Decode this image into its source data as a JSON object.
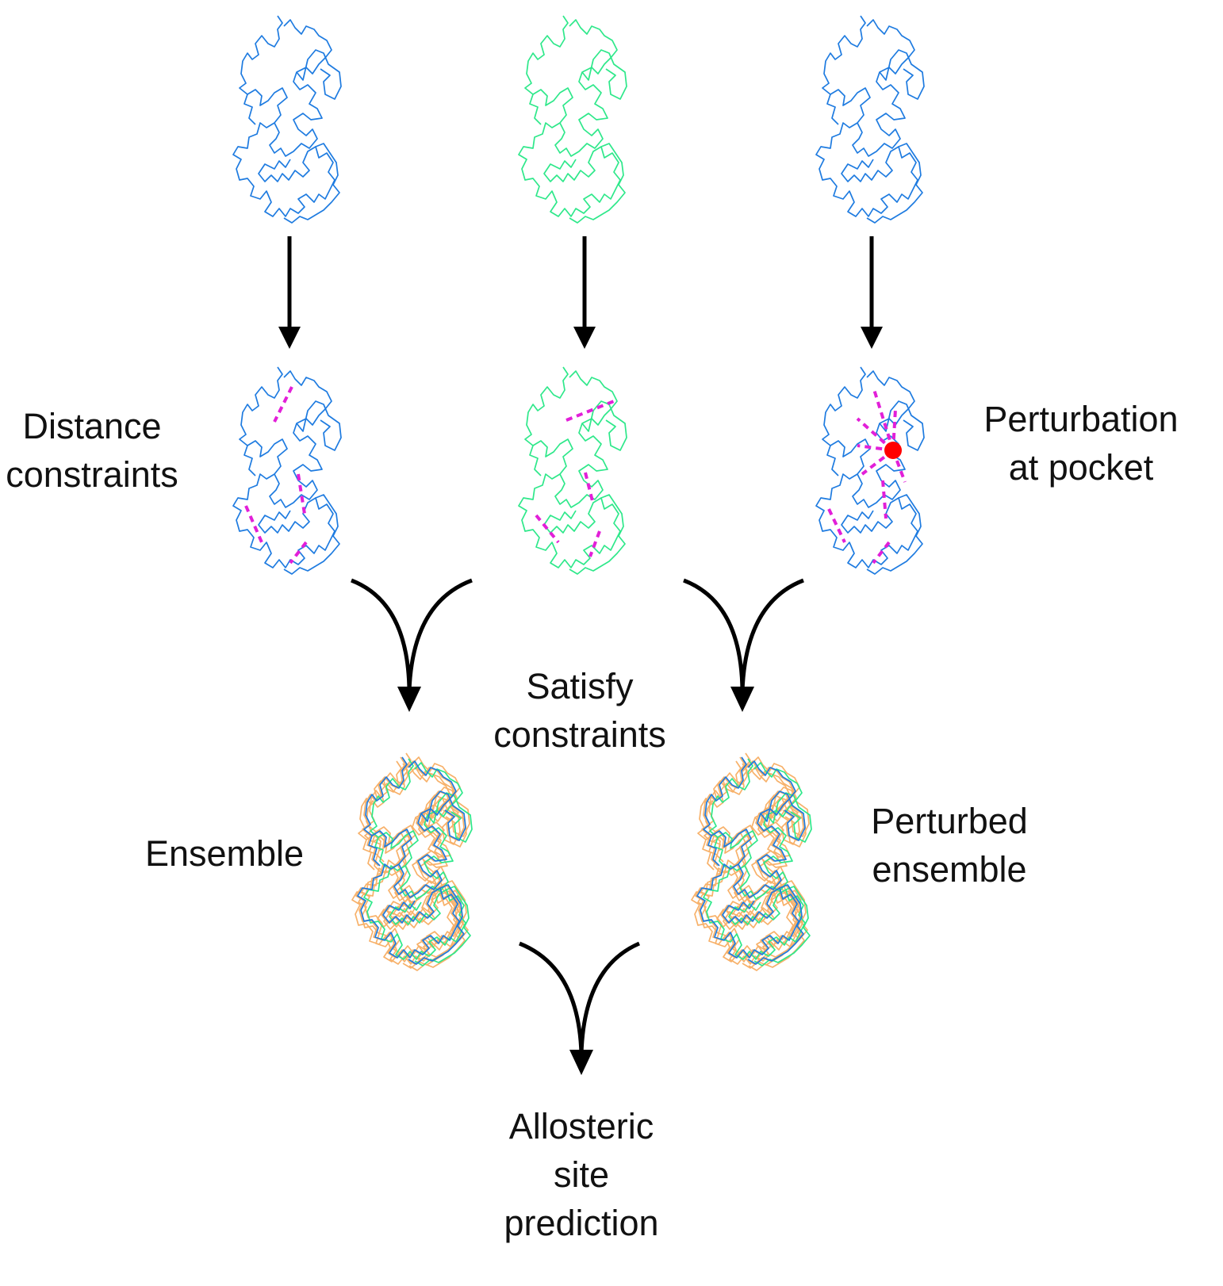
{
  "labels": {
    "distance": [
      "Distance",
      "constraints"
    ],
    "perturbation": [
      "Perturbation",
      "at pocket"
    ],
    "satisfy": [
      "Satisfy",
      "constraints"
    ],
    "ensemble": "Ensemble",
    "perturbed": [
      "Perturbed",
      "ensemble"
    ],
    "allosteric": [
      "Allosteric",
      "site",
      "prediction"
    ]
  },
  "colors": {
    "blue": "#1e7be0",
    "green": "#2ee88a",
    "orange": "#f7b16a",
    "constraint": "#e21fd8",
    "pocket": "#ff0000",
    "arrow": "#000000"
  },
  "structures": [
    {
      "name": "protein-top-left",
      "color": "blue"
    },
    {
      "name": "protein-top-middle",
      "color": "green"
    },
    {
      "name": "protein-top-right",
      "color": "blue"
    },
    {
      "name": "protein-constrained-left",
      "color": "blue"
    },
    {
      "name": "protein-constrained-middle",
      "color": "green"
    },
    {
      "name": "protein-perturbed-right",
      "color": "blue"
    },
    {
      "name": "ensemble-left",
      "color": "orange"
    },
    {
      "name": "ensemble-right",
      "color": "orange"
    }
  ]
}
